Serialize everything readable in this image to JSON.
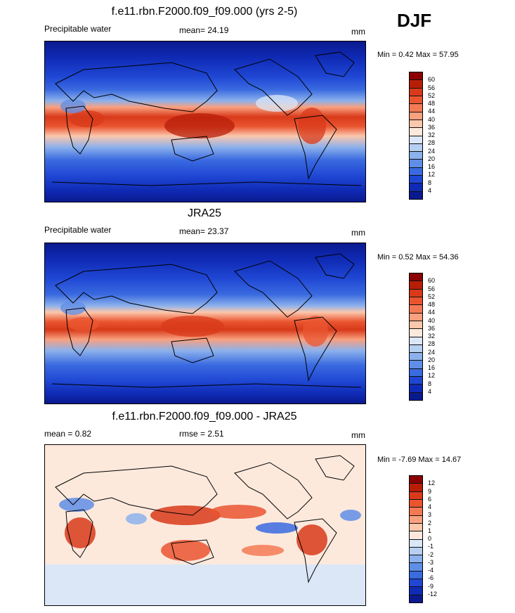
{
  "season": "DJF",
  "panels": [
    {
      "title": "f.e11.rbn.F2000.f09_f09.000 (yrs 2-5)",
      "left_label": "Precipitable water",
      "center_label": "mean=  24.19",
      "right_label": "mm",
      "minmax": "Min =   0.42 Max =  57.95",
      "colorbar_labels": [
        "60",
        "56",
        "52",
        "48",
        "44",
        "40",
        "36",
        "32",
        "28",
        "24",
        "20",
        "16",
        "12",
        "8",
        "4"
      ],
      "colorbar_colors": [
        "#8b0000",
        "#b81d08",
        "#d83a1a",
        "#ea5530",
        "#f47a55",
        "#f9a07f",
        "#fbc7ad",
        "#fce9dc",
        "#dbe7f7",
        "#b7cff1",
        "#8cb1ec",
        "#5f8ee6",
        "#3a6ae0",
        "#1f47d4",
        "#0f2ab5",
        "#0a1a8e"
      ]
    },
    {
      "title": "JRA25",
      "left_label": "Precipitable water",
      "center_label": "mean=  23.37",
      "right_label": "mm",
      "minmax": "Min =   0.52 Max =  54.36",
      "colorbar_labels": [
        "60",
        "56",
        "52",
        "48",
        "44",
        "40",
        "36",
        "32",
        "28",
        "24",
        "20",
        "16",
        "12",
        "8",
        "4"
      ],
      "colorbar_colors": [
        "#8b0000",
        "#b81d08",
        "#d83a1a",
        "#ea5530",
        "#f47a55",
        "#f9a07f",
        "#fbc7ad",
        "#fce9dc",
        "#dbe7f7",
        "#b7cff1",
        "#8cb1ec",
        "#5f8ee6",
        "#3a6ae0",
        "#1f47d4",
        "#0f2ab5",
        "#0a1a8e"
      ]
    },
    {
      "title": "f.e11.rbn.F2000.f09_f09.000 - JRA25",
      "left_label": "mean =   0.82",
      "center_label": "rmse =   2.51",
      "right_label": "mm",
      "minmax": "Min =  -7.69 Max =  14.67",
      "colorbar_labels": [
        "12",
        "9",
        "6",
        "4",
        "3",
        "2",
        "1",
        "0",
        "-1",
        "-2",
        "-3",
        "-4",
        "-6",
        "-9",
        "-12"
      ],
      "colorbar_colors": [
        "#8b0000",
        "#b81d08",
        "#d83a1a",
        "#ea5530",
        "#f47a55",
        "#f9a07f",
        "#fbc7ad",
        "#fce9dc",
        "#dbe7f7",
        "#b7cff1",
        "#8cb1ec",
        "#5f8ee6",
        "#3a6ae0",
        "#1f47d4",
        "#0f2ab5",
        "#0a1a8e"
      ]
    }
  ]
}
